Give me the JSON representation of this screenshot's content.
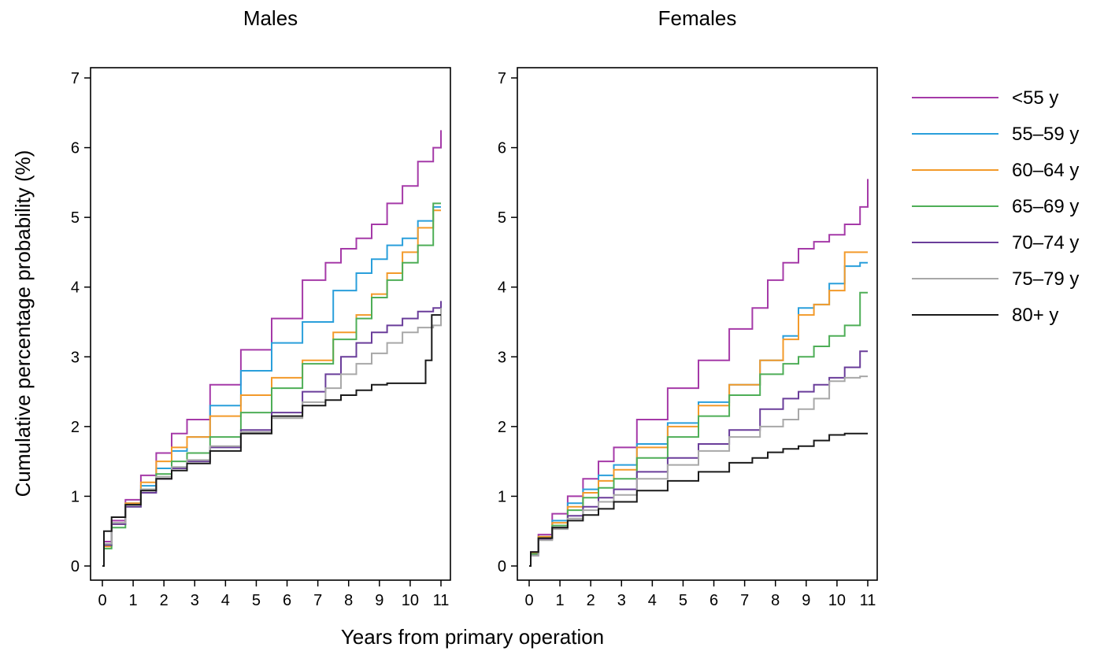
{
  "chart_data": {
    "type": "line",
    "xlabel": "Years from primary operation",
    "ylabel": "Cumulative percentage probability (%)",
    "xlim": [
      0,
      11
    ],
    "ylim": [
      0,
      7
    ],
    "x_ticks": [
      "0",
      "1",
      "2",
      "3",
      "4",
      "5",
      "6",
      "7",
      "8",
      "9",
      "10",
      "11"
    ],
    "y_ticks": [
      "0",
      "1",
      "2",
      "3",
      "4",
      "5",
      "6",
      "7"
    ],
    "grid": false,
    "legend_position": "right",
    "legend": [
      {
        "label": "<55 y",
        "color": "#a53aa8"
      },
      {
        "label": "55–59 y",
        "color": "#2a9fdb"
      },
      {
        "label": "60–64 y",
        "color": "#f39a2a"
      },
      {
        "label": "65–69 y",
        "color": "#4eae57"
      },
      {
        "label": "70–74 y",
        "color": "#6a3d9a"
      },
      {
        "label": "75–79 y",
        "color": "#a8a8a8"
      },
      {
        "label": "80+ y",
        "color": "#1a1a1a"
      }
    ],
    "panels": [
      {
        "title": "Males",
        "series": [
          {
            "name": "<55 y",
            "color": "#a53aa8",
            "x": [
              0,
              0.1,
              0.5,
              1,
              1.5,
              2,
              2.5,
              3,
              4,
              5,
              6,
              7,
              7.5,
              8,
              8.5,
              9,
              9.5,
              10,
              10.5,
              11,
              11
            ],
            "y": [
              0,
              0.35,
              0.65,
              0.95,
              1.3,
              1.62,
              1.9,
              2.1,
              2.6,
              3.1,
              3.55,
              4.1,
              4.35,
              4.55,
              4.7,
              4.9,
              5.2,
              5.45,
              5.8,
              6.0,
              6.25
            ]
          },
          {
            "name": "55–59 y",
            "color": "#2a9fdb",
            "x": [
              0,
              0.1,
              0.5,
              1,
              1.5,
              2,
              2.5,
              3,
              4,
              5,
              6,
              7,
              8,
              8.5,
              9,
              9.5,
              10,
              10.5,
              11
            ],
            "y": [
              0,
              0.3,
              0.6,
              0.9,
              1.15,
              1.4,
              1.65,
              1.85,
              2.3,
              2.8,
              3.2,
              3.5,
              3.95,
              4.2,
              4.4,
              4.6,
              4.7,
              4.95,
              5.15
            ]
          },
          {
            "name": "60–64 y",
            "color": "#f39a2a",
            "x": [
              0,
              0.1,
              0.5,
              1,
              1.5,
              2,
              2.5,
              3,
              4,
              5,
              6,
              7,
              8,
              8.5,
              9,
              9.5,
              10,
              10.5,
              11
            ],
            "y": [
              0,
              0.28,
              0.6,
              0.9,
              1.2,
              1.5,
              1.7,
              1.85,
              2.15,
              2.45,
              2.7,
              2.95,
              3.35,
              3.6,
              3.9,
              4.2,
              4.5,
              4.85,
              5.1
            ]
          },
          {
            "name": "65–69 y",
            "color": "#4eae57",
            "x": [
              0,
              0.1,
              0.5,
              1,
              1.5,
              2,
              2.5,
              3,
              4,
              5,
              6,
              7,
              8,
              8.5,
              9,
              9.5,
              10,
              10.5,
              11
            ],
            "y": [
              0,
              0.25,
              0.55,
              0.85,
              1.1,
              1.32,
              1.5,
              1.62,
              1.85,
              2.2,
              2.55,
              2.9,
              3.25,
              3.55,
              3.85,
              4.1,
              4.35,
              4.6,
              5.2
            ]
          },
          {
            "name": "70–74 y",
            "color": "#6a3d9a",
            "x": [
              0,
              0.1,
              0.5,
              1,
              1.5,
              2,
              2.5,
              3,
              4,
              5,
              6,
              7,
              7.5,
              8,
              8.5,
              9,
              9.5,
              10,
              10.5,
              11,
              11
            ],
            "y": [
              0,
              0.3,
              0.6,
              0.85,
              1.05,
              1.25,
              1.4,
              1.5,
              1.7,
              1.95,
              2.2,
              2.5,
              2.75,
              3.0,
              3.2,
              3.35,
              3.45,
              3.55,
              3.65,
              3.7,
              3.8
            ]
          },
          {
            "name": "75–79 y",
            "color": "#a8a8a8",
            "x": [
              0,
              0.1,
              0.5,
              1,
              1.5,
              2,
              2.5,
              3,
              4,
              5,
              6,
              7,
              7.5,
              8,
              8.5,
              9,
              9.5,
              10,
              10.5,
              11,
              11
            ],
            "y": [
              0,
              0.32,
              0.62,
              0.88,
              1.1,
              1.28,
              1.42,
              1.52,
              1.72,
              1.92,
              2.12,
              2.35,
              2.55,
              2.75,
              2.9,
              3.05,
              3.2,
              3.35,
              3.42,
              3.45,
              3.7
            ]
          },
          {
            "name": "80+ y",
            "color": "#1a1a1a",
            "x": [
              0,
              0.1,
              0.5,
              1,
              1.5,
              2,
              2.5,
              3,
              4,
              5,
              6,
              7,
              7.5,
              8,
              8.5,
              9,
              9.5,
              10,
              10.3,
              10.7,
              10.7,
              11
            ],
            "y": [
              0,
              0.5,
              0.7,
              0.88,
              1.08,
              1.25,
              1.37,
              1.47,
              1.65,
              1.9,
              2.15,
              2.3,
              2.38,
              2.45,
              2.52,
              2.6,
              2.62,
              2.62,
              2.62,
              2.95,
              3.6,
              3.6
            ]
          }
        ]
      },
      {
        "title": "Females",
        "series": [
          {
            "name": "<55 y",
            "color": "#a53aa8",
            "x": [
              0,
              0.1,
              0.5,
              1,
              1.5,
              2,
              2.5,
              3,
              4,
              5,
              6,
              7,
              7.5,
              8,
              8.5,
              9,
              9.5,
              10,
              10.5,
              11,
              11
            ],
            "y": [
              0,
              0.2,
              0.45,
              0.75,
              1.0,
              1.25,
              1.5,
              1.7,
              2.1,
              2.55,
              2.95,
              3.4,
              3.7,
              4.1,
              4.35,
              4.55,
              4.65,
              4.75,
              4.9,
              5.15,
              5.55
            ]
          },
          {
            "name": "55–59 y",
            "color": "#2a9fdb",
            "x": [
              0,
              0.1,
              0.5,
              1,
              1.5,
              2,
              2.5,
              3,
              4,
              5,
              6,
              7,
              8,
              8.5,
              9,
              9.5,
              10,
              10.5,
              11
            ],
            "y": [
              0,
              0.18,
              0.42,
              0.65,
              0.9,
              1.1,
              1.3,
              1.45,
              1.75,
              2.05,
              2.35,
              2.6,
              2.95,
              3.3,
              3.7,
              3.75,
              4.05,
              4.3,
              4.35
            ]
          },
          {
            "name": "60–64 y",
            "color": "#f39a2a",
            "x": [
              0,
              0.1,
              0.5,
              1,
              1.5,
              2,
              2.5,
              3,
              4,
              5,
              6,
              7,
              8,
              8.5,
              9,
              9.5,
              10,
              10.5,
              11
            ],
            "y": [
              0,
              0.18,
              0.42,
              0.62,
              0.85,
              1.05,
              1.22,
              1.38,
              1.7,
              2.0,
              2.3,
              2.6,
              2.95,
              3.25,
              3.6,
              3.75,
              3.95,
              4.5,
              4.5
            ]
          },
          {
            "name": "65–69 y",
            "color": "#4eae57",
            "x": [
              0,
              0.1,
              0.5,
              1,
              1.5,
              2,
              2.5,
              3,
              4,
              5,
              6,
              7,
              8,
              8.5,
              9,
              9.5,
              10,
              10.5,
              11
            ],
            "y": [
              0,
              0.17,
              0.4,
              0.58,
              0.8,
              0.98,
              1.12,
              1.25,
              1.55,
              1.85,
              2.15,
              2.45,
              2.75,
              2.9,
              3.0,
              3.15,
              3.3,
              3.45,
              3.92
            ]
          },
          {
            "name": "70–74 y",
            "color": "#6a3d9a",
            "x": [
              0,
              0.1,
              0.5,
              1,
              1.5,
              2,
              2.5,
              3,
              4,
              5,
              6,
              7,
              8,
              8.5,
              9,
              9.5,
              10,
              10.5,
              11
            ],
            "y": [
              0,
              0.15,
              0.38,
              0.55,
              0.72,
              0.85,
              0.98,
              1.1,
              1.35,
              1.55,
              1.75,
              1.95,
              2.25,
              2.4,
              2.5,
              2.6,
              2.7,
              2.85,
              3.08
            ]
          },
          {
            "name": "75–79 y",
            "color": "#a8a8a8",
            "x": [
              0,
              0.1,
              0.5,
              1,
              1.5,
              2,
              2.5,
              3,
              4,
              5,
              6,
              7,
              8,
              8.5,
              9,
              9.5,
              10,
              10.5,
              11
            ],
            "y": [
              0,
              0.15,
              0.37,
              0.53,
              0.68,
              0.8,
              0.92,
              1.02,
              1.25,
              1.45,
              1.65,
              1.85,
              2.0,
              2.1,
              2.25,
              2.4,
              2.65,
              2.7,
              2.72
            ]
          },
          {
            "name": "80+ y",
            "color": "#1a1a1a",
            "x": [
              0,
              0.1,
              0.5,
              1,
              1.5,
              2,
              2.5,
              3,
              4,
              5,
              6,
              7,
              7.5,
              8,
              8.5,
              9,
              9.5,
              10,
              10.5,
              11
            ],
            "y": [
              0,
              0.2,
              0.4,
              0.55,
              0.65,
              0.73,
              0.82,
              0.92,
              1.08,
              1.22,
              1.35,
              1.48,
              1.55,
              1.63,
              1.68,
              1.72,
              1.8,
              1.88,
              1.9,
              1.9
            ]
          }
        ]
      }
    ]
  }
}
